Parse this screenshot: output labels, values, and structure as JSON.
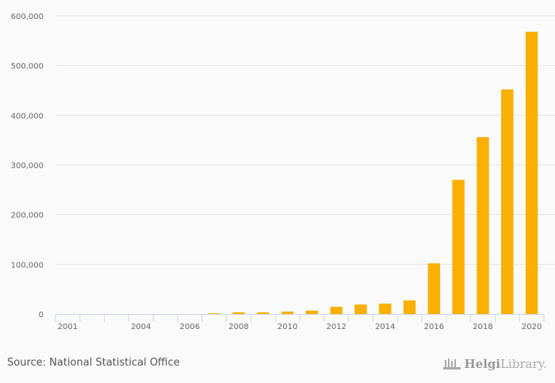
{
  "chart_data": {
    "type": "bar",
    "title": "",
    "xlabel": "",
    "ylabel": "",
    "ylim": [
      0,
      600000
    ],
    "yticks": [
      0,
      100000,
      200000,
      300000,
      400000,
      500000,
      600000
    ],
    "ytick_labels": [
      "0",
      "100,000",
      "200,000",
      "300,000",
      "400,000",
      "500,000",
      "600,000"
    ],
    "categories": [
      "2001",
      "2002",
      "2003",
      "2004",
      "2005",
      "2006",
      "2007",
      "2008",
      "2009",
      "2010",
      "2011",
      "2012",
      "2013",
      "2014",
      "2015",
      "2016",
      "2017",
      "2018",
      "2019",
      "2020"
    ],
    "xtick_labels_shown": [
      "2001",
      "2004",
      "2006",
      "2008",
      "2010",
      "2012",
      "2014",
      "2016",
      "2018",
      "2020"
    ],
    "values": [
      0,
      0,
      0,
      0,
      0,
      0,
      1500,
      3500,
      3500,
      5000,
      7000,
      14500,
      19000,
      21000,
      27500,
      102000,
      270000,
      356000,
      452000,
      568000
    ],
    "bar_color": "#f9b000",
    "grid": true
  },
  "footer": {
    "source": "Source: National Statistical Office",
    "logo_text": "HelgiLibrary."
  }
}
